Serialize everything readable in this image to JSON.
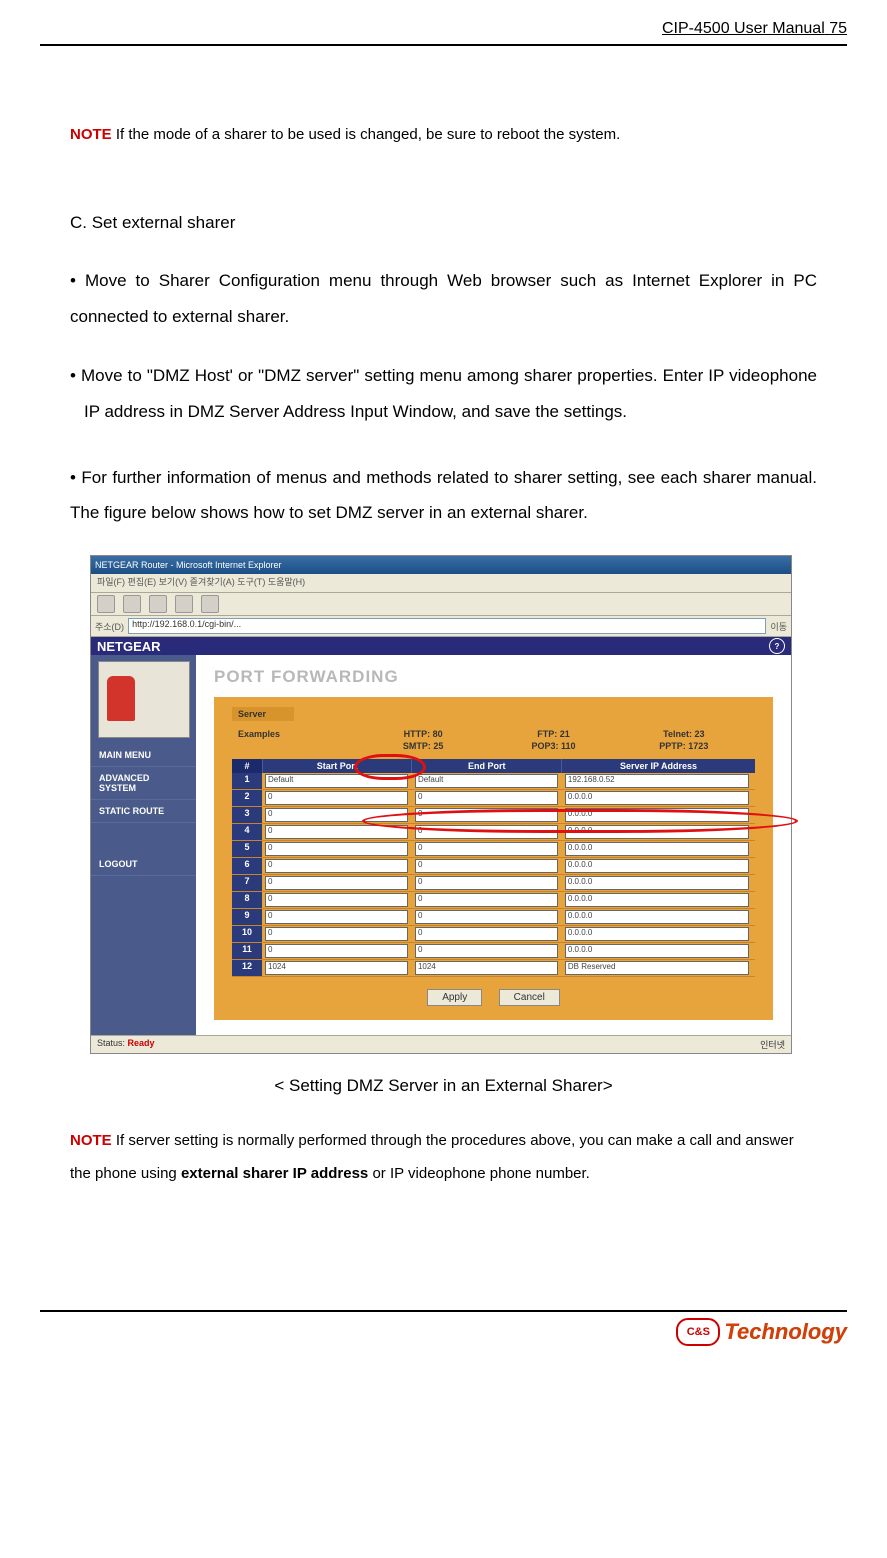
{
  "header": {
    "title": "CIP-4500 User Manual",
    "page": "75"
  },
  "note1": {
    "label": "NOTE",
    "text": " If the mode of a sharer to be used is changed, be sure to reboot the system."
  },
  "section": {
    "title": " C. Set external sharer"
  },
  "para1": "• Move to Sharer Configuration menu through Web browser such as Internet Explorer in PC connected to external sharer.",
  "para2": "• Move to \"DMZ Host' or \"DMZ server\" setting menu among sharer properties. Enter IP videophone IP address in DMZ Server Address Input Window, and save the settings.",
  "para3": "• For further information of menus and methods related to sharer setting, see each sharer manual. The figure below shows how to set DMZ server in an external sharer.",
  "browser": {
    "title": "NETGEAR Router - Microsoft Internet Explorer",
    "menu": "파일(F)  편집(E)  보기(V)  즐겨찾기(A)  도구(T)  도움말(H)",
    "addr_label": "주소(D)",
    "addr_value": "http://192.168.0.1/cgi-bin/...",
    "addr_go": "이동"
  },
  "netgear": {
    "brand": "NETGEAR",
    "help": "?"
  },
  "sidebar": {
    "items": [
      "MAIN MENU",
      "ADVANCED SYSTEM",
      "STATIC ROUTE",
      "LOGOUT"
    ]
  },
  "port_forwarding": {
    "title": "PORT FORWARDING",
    "server_label": "Server",
    "examples_label": "Examples",
    "ex_cols": [
      "HTTP: 80\nSMTP: 25",
      "FTP: 21\nPOP3: 110",
      "Telnet: 23\nPPTP: 1723"
    ],
    "headers": [
      "#",
      "Start Port",
      "End Port",
      "Server IP Address"
    ],
    "rows": [
      {
        "n": "1",
        "s": "Default",
        "e": "Default",
        "ip": "192.168.0.52"
      },
      {
        "n": "2",
        "s": "0",
        "e": "0",
        "ip": "0.0.0.0"
      },
      {
        "n": "3",
        "s": "0",
        "e": "0",
        "ip": "0.0.0.0"
      },
      {
        "n": "4",
        "s": "0",
        "e": "0",
        "ip": "0.0.0.0"
      },
      {
        "n": "5",
        "s": "0",
        "e": "0",
        "ip": "0.0.0.0"
      },
      {
        "n": "6",
        "s": "0",
        "e": "0",
        "ip": "0.0.0.0"
      },
      {
        "n": "7",
        "s": "0",
        "e": "0",
        "ip": "0.0.0.0"
      },
      {
        "n": "8",
        "s": "0",
        "e": "0",
        "ip": "0.0.0.0"
      },
      {
        "n": "9",
        "s": "0",
        "e": "0",
        "ip": "0.0.0.0"
      },
      {
        "n": "10",
        "s": "0",
        "e": "0",
        "ip": "0.0.0.0"
      },
      {
        "n": "11",
        "s": "0",
        "e": "0",
        "ip": "0.0.0.0"
      },
      {
        "n": "12",
        "s": "1024",
        "e": "1024",
        "ip": "DB Reserved"
      }
    ],
    "btn_apply": "Apply",
    "btn_cancel": "Cancel"
  },
  "statusbar": {
    "label": "Status:",
    "value": "Ready",
    "right": "인터넷"
  },
  "caption": "< Setting DMZ Server in an External Sharer>",
  "note2": {
    "label": "NOTE",
    "pre": " If server setting is normally performed through the procedures above, you can make a call and answer the phone using ",
    "bold": "external sharer IP address",
    "post": " or IP videophone phone number."
  },
  "footer": {
    "badge": "C&S",
    "text": "Technology"
  }
}
